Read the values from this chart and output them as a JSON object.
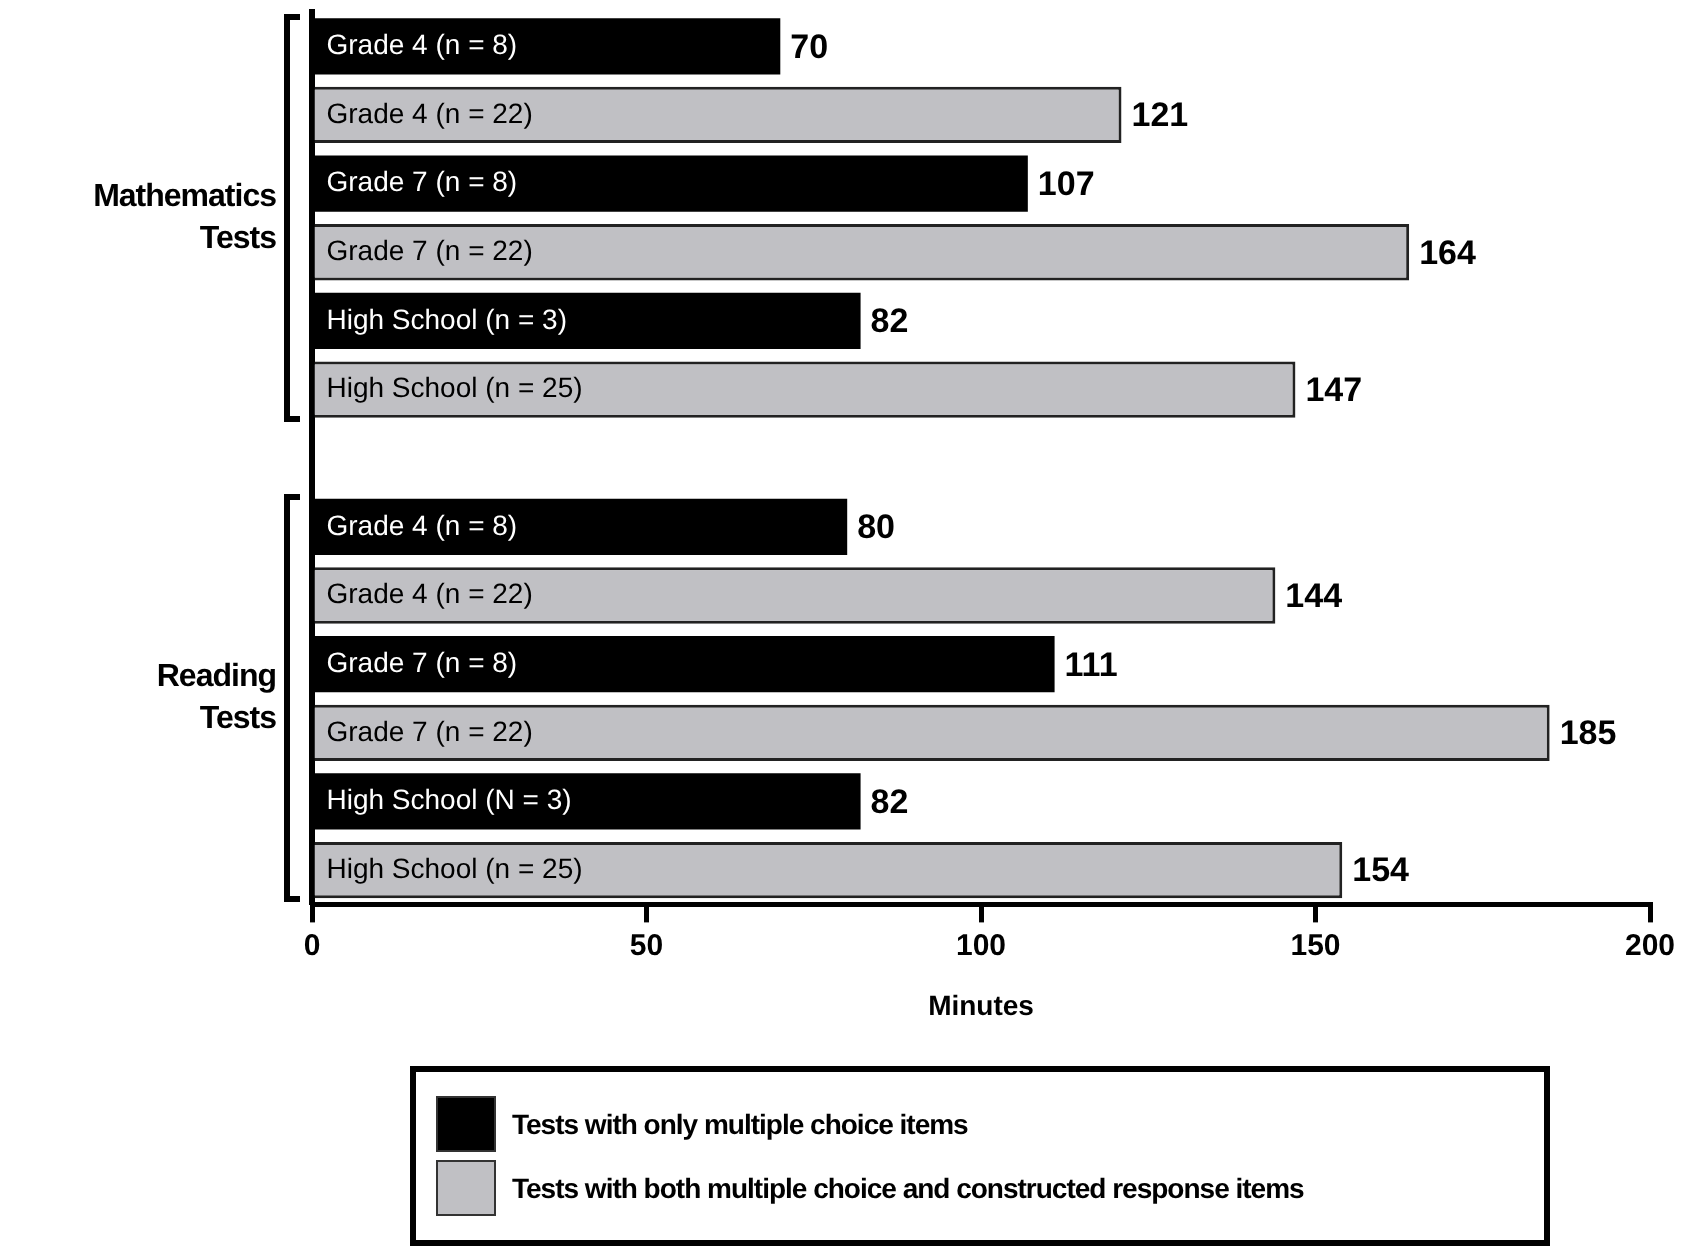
{
  "chart_data": {
    "type": "bar",
    "orientation": "horizontal",
    "xlabel": "Minutes",
    "categories": [
      "Grade 4 (n = 8)",
      "Grade 4 (n = 22)",
      "Grade 7 (n = 8)",
      "Grade 7 (n = 22)",
      "High School (n = 3)",
      "High School (n = 25)",
      null,
      "Grade 4 (n = 8)",
      "Grade 4 (n = 22)",
      "Grade 7 (n = 8)",
      "Grade 7 (n = 22)",
      "High School (N = 3)",
      "High School (n = 25)"
    ],
    "series": [
      {
        "name": "Tests with only multiple choice items",
        "color": "#000000",
        "values": [
          70,
          null,
          107,
          null,
          82,
          null,
          null,
          80,
          null,
          111,
          null,
          82,
          null
        ]
      },
      {
        "name": "Tests with both multiple choice and constructed response items",
        "color": "#c0c0c4",
        "values": [
          null,
          121,
          null,
          164,
          null,
          147,
          null,
          null,
          144,
          null,
          185,
          null,
          154
        ]
      }
    ],
    "xlim": [
      0,
      200
    ],
    "xticks": [
      0,
      50,
      100,
      150,
      200
    ],
    "annotations": [
      "Mathematics Tests",
      "Reading Tests"
    ],
    "data_labels": true,
    "grid": false,
    "legend": "bottom"
  }
}
